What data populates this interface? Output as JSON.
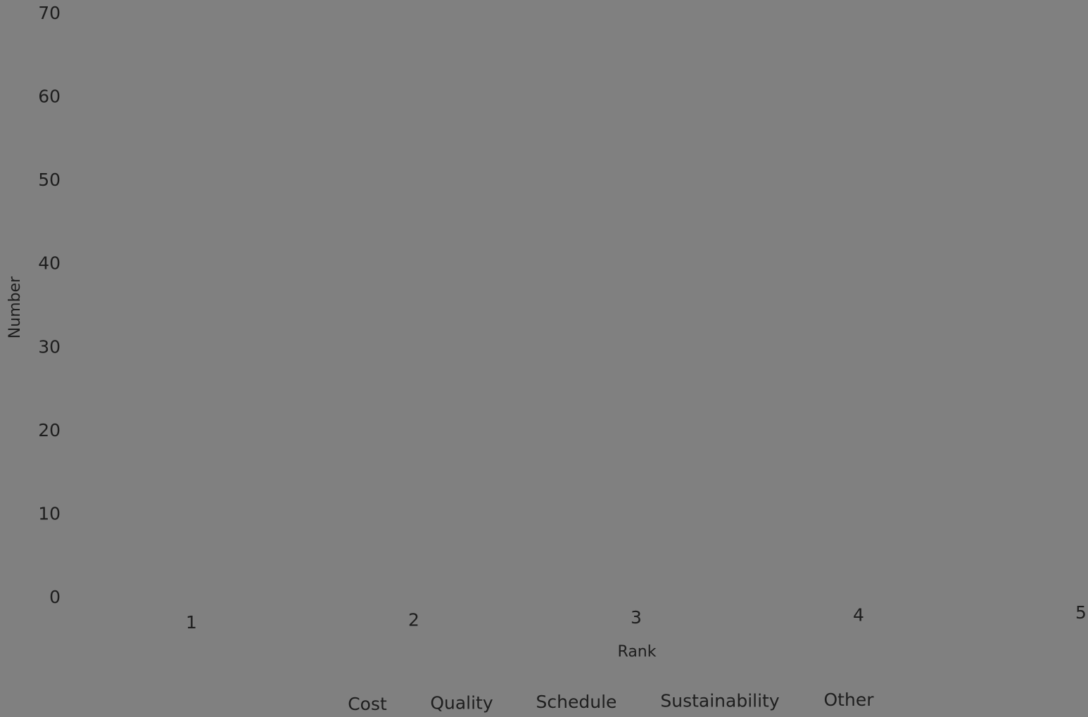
{
  "chart_data": {
    "type": "bar",
    "x_label": "Rank",
    "y_label": "Number",
    "categories": [
      "1",
      "2",
      "3",
      "4",
      "5"
    ],
    "ylim": [
      0,
      70
    ],
    "yticks": [
      0,
      10,
      20,
      30,
      40,
      50,
      60,
      70
    ],
    "legend": [
      "Cost",
      "Quality",
      "Schedule",
      "Sustainability",
      "Other"
    ]
  }
}
